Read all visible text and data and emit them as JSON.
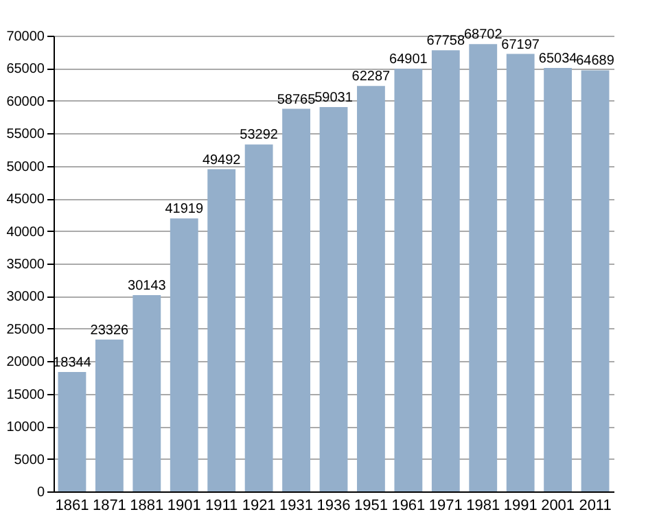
{
  "chart_data": {
    "type": "bar",
    "categories": [
      "1861",
      "1871",
      "1881",
      "1901",
      "1911",
      "1921",
      "1931",
      "1936",
      "1951",
      "1961",
      "1971",
      "1981",
      "1991",
      "2001",
      "2011"
    ],
    "values": [
      18344,
      23326,
      30143,
      41919,
      49492,
      53292,
      58765,
      59031,
      62287,
      64901,
      67758,
      68702,
      67197,
      65034,
      64689
    ],
    "color": "#94afcb",
    "ylim": [
      0,
      70000
    ],
    "yticks": [
      0,
      5000,
      10000,
      15000,
      20000,
      25000,
      30000,
      35000,
      40000,
      45000,
      50000,
      55000,
      60000,
      65000,
      70000
    ],
    "grid": "y",
    "data_labels": true
  }
}
